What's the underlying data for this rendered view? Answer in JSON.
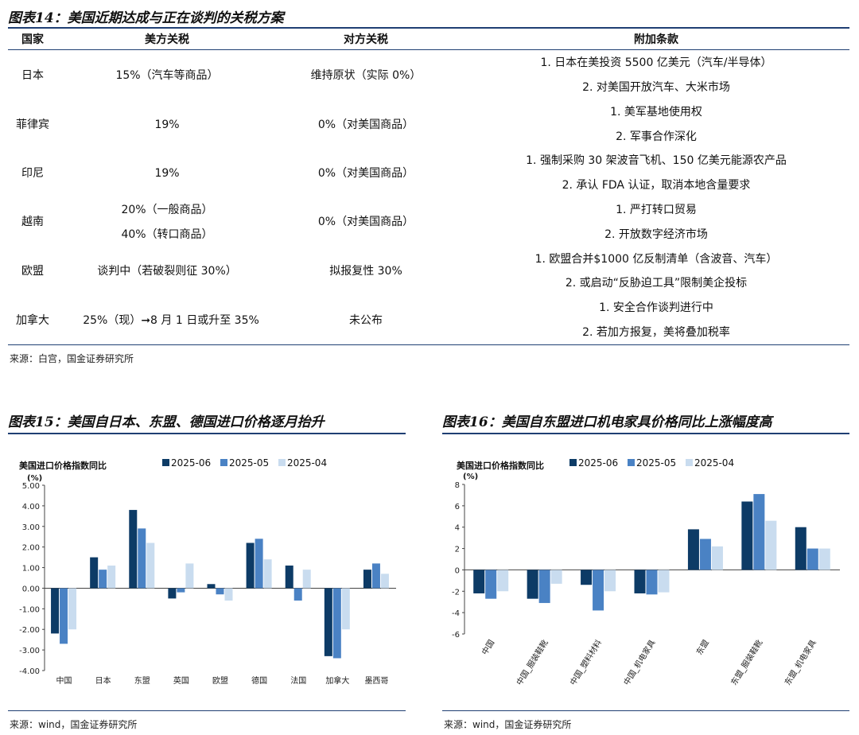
{
  "fig14": {
    "title": "图表14：美国近期达成与正在谈判的关税方案",
    "headers": [
      "国家",
      "美方关税",
      "对方关税",
      "附加条款"
    ],
    "rows": [
      {
        "country": "日本",
        "us": [
          "15%（汽车等商品）"
        ],
        "other": "维持原状（实际 0%）",
        "terms": [
          "1. 日本在美投资 5500 亿美元（汽车/半导体）",
          "2. 对美国开放汽车、大米市场"
        ]
      },
      {
        "country": "菲律宾",
        "us": [
          "19%"
        ],
        "other": "0%（对美国商品）",
        "terms": [
          "1. 美军基地使用权",
          "2. 军事合作深化"
        ]
      },
      {
        "country": "印尼",
        "us": [
          "19%"
        ],
        "other": "0%（对美国商品）",
        "terms": [
          "1. 强制采购 30 架波音飞机、150 亿美元能源农产品",
          "2. 承认 FDA 认证，取消本地含量要求"
        ]
      },
      {
        "country": "越南",
        "us": [
          "20%（一般商品）",
          "40%（转口商品）"
        ],
        "other": "0%（对美国商品）",
        "terms": [
          "1. 严打转口贸易",
          "2. 开放数字经济市场"
        ]
      },
      {
        "country": "欧盟",
        "us": [
          "谈判中（若破裂则征 30%）"
        ],
        "other": "拟报复性 30%",
        "terms": [
          "1. 欧盟合并$1000 亿反制清单（含波音、汽车）",
          "2. 或启动“反胁迫工具”限制美企投标"
        ]
      },
      {
        "country": "加拿大",
        "us": [
          "25%（现）➞8 月 1 日或升至 35%"
        ],
        "other": "未公布",
        "terms": [
          "1. 安全合作谈判进行中",
          "2. 若加方报复，美将叠加税率"
        ]
      }
    ],
    "source": "来源：白宫，国金证券研究所"
  },
  "fig15": {
    "title": "图表15：美国自日本、东盟、德国进口价格逐月抬升",
    "source": "来源：wind，国金证券研究所",
    "chart_data": {
      "type": "bar",
      "title": "美国进口价格指数同比",
      "ylabel": "(%)",
      "categories": [
        "中国",
        "日本",
        "东盟",
        "英国",
        "欧盟",
        "德国",
        "法国",
        "加拿大",
        "墨西哥"
      ],
      "series": [
        {
          "name": "2025-06",
          "color": "#0d3b66",
          "values": [
            -2.2,
            1.5,
            3.8,
            -0.5,
            0.2,
            2.2,
            1.1,
            -3.3,
            0.9
          ]
        },
        {
          "name": "2025-05",
          "color": "#4a82c4",
          "values": [
            -2.7,
            0.9,
            2.9,
            -0.2,
            -0.3,
            2.4,
            -0.6,
            -3.4,
            1.2
          ]
        },
        {
          "name": "2025-04",
          "color": "#c9dcef",
          "values": [
            -2.0,
            1.1,
            2.2,
            1.2,
            -0.6,
            1.4,
            0.9,
            -2.0,
            0.7
          ]
        }
      ],
      "ylim": [
        -4,
        5
      ],
      "yticks": [
        "5.00",
        "4.00",
        "3.00",
        "2.00",
        "1.00",
        "0.00",
        "-1.00",
        "-2.00",
        "-3.00",
        "-4.00"
      ]
    }
  },
  "fig16": {
    "title": "图表16：美国自东盟进口机电家具价格同比上涨幅度高",
    "source": "来源：wind，国金证券研究所",
    "chart_data": {
      "type": "bar",
      "title": "美国进口价格指数同比",
      "ylabel": "(%)",
      "categories": [
        "中国",
        "中国_服装鞋靴",
        "中国_塑料材料",
        "中国_机电家具",
        "东盟",
        "东盟_服装鞋靴",
        "东盟_机电家具"
      ],
      "series": [
        {
          "name": "2025-06",
          "color": "#0d3b66",
          "values": [
            -2.2,
            -2.7,
            -1.4,
            -2.2,
            3.8,
            6.4,
            4.0
          ]
        },
        {
          "name": "2025-05",
          "color": "#4a82c4",
          "values": [
            -2.7,
            -3.1,
            -3.8,
            -2.3,
            2.9,
            7.1,
            2.0
          ]
        },
        {
          "name": "2025-04",
          "color": "#c9dcef",
          "values": [
            -2.0,
            -1.3,
            -2.0,
            -2.1,
            2.2,
            4.6,
            2.0
          ]
        }
      ],
      "ylim": [
        -6,
        8
      ],
      "yticks": [
        "8",
        "6",
        "4",
        "2",
        "0",
        "-2",
        "-4",
        "-6"
      ]
    }
  }
}
